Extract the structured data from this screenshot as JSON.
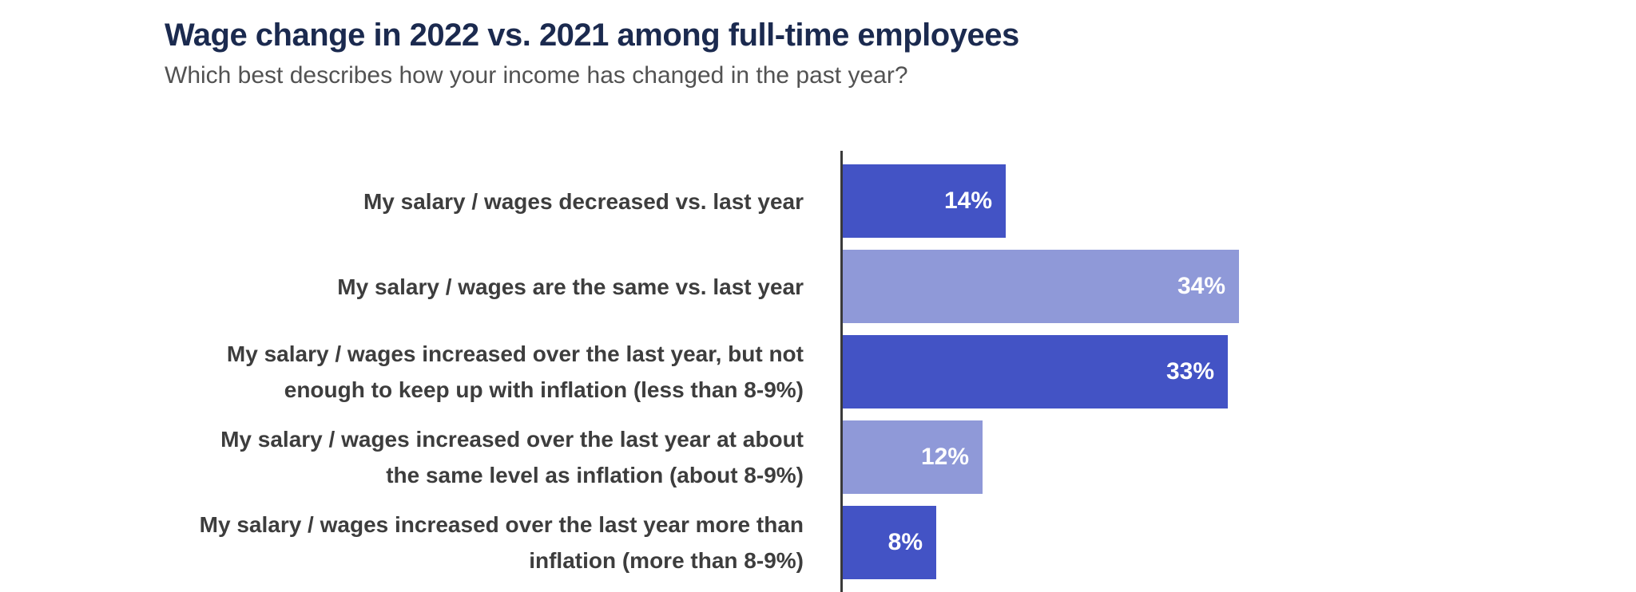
{
  "chart_data": {
    "type": "bar",
    "orientation": "horizontal",
    "title": "Wage change in 2022 vs. 2021 among full-time employees",
    "subtitle": "Which best describes how your income has changed in the past year?",
    "categories": [
      "My salary / wages decreased vs. last year",
      "My salary / wages are the same vs. last year",
      "My salary / wages increased over the last year, but not enough to keep up with inflation (less than 8-9%)",
      "My salary / wages increased over the last year at about the same level as inflation (about 8-9%)",
      "My salary / wages increased over the last year more than inflation (more than 8-9%)"
    ],
    "label_lines": [
      [
        "My salary / wages decreased vs. last year"
      ],
      [
        "My salary / wages are the same vs. last year"
      ],
      [
        "My salary / wages increased over the last year, but not",
        "enough to keep up with inflation (less than 8-9%)"
      ],
      [
        "My salary / wages increased over the last year at about",
        "the same level as inflation (about 8-9%)"
      ],
      [
        "My salary / wages increased over the last year more than",
        "inflation (more than 8-9%)"
      ]
    ],
    "values": [
      14,
      34,
      33,
      12,
      8
    ],
    "value_labels": [
      "14%",
      "34%",
      "33%",
      "12%",
      "8%"
    ],
    "bar_colors": [
      "#4353C5",
      "#8F99D8",
      "#4353C5",
      "#8F99D8",
      "#4353C5"
    ],
    "data_label_position": "inside-end",
    "grid": false,
    "legend": false,
    "colors": {
      "bar_dark": "#4353C5",
      "bar_light": "#8F99D8",
      "axis_line": "#3A3A3A",
      "title_text": "#1B2A4F",
      "subtitle_text": "#525252",
      "category_text": "#3D3D3D",
      "value_text": "#FFFFFF",
      "background": "#FFFFFF"
    }
  }
}
